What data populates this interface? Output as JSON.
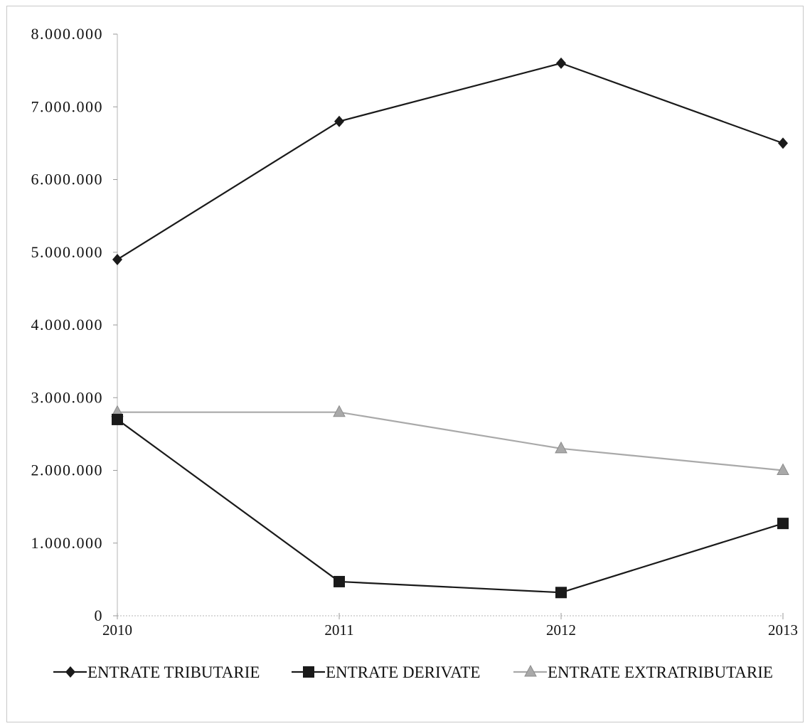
{
  "chart_data": {
    "type": "line",
    "categories": [
      "2010",
      "2011",
      "2012",
      "2013"
    ],
    "series": [
      {
        "name": "ENTRATE TRIBUTARIE",
        "marker": "diamond",
        "color": "#1a1a1a",
        "values": [
          4900000,
          6800000,
          7600000,
          6500000
        ]
      },
      {
        "name": "ENTRATE DERIVATE",
        "marker": "square",
        "color": "#1a1a1a",
        "values": [
          2700000,
          470000,
          320000,
          1270000
        ]
      },
      {
        "name": "ENTRATE EXTRATRIBUTARIE",
        "marker": "triangle",
        "color": "#a9a9a9",
        "values": [
          2800000,
          2800000,
          2300000,
          2000000
        ]
      }
    ],
    "ylim": [
      0,
      8000000
    ],
    "ytick_values": [
      0,
      1000000,
      2000000,
      3000000,
      4000000,
      5000000,
      6000000,
      7000000,
      8000000
    ],
    "ytick_labels": [
      "0",
      "1.000.000",
      "2.000.000",
      "3.000.000",
      "4.000.000",
      "5.000.000",
      "6.000.000",
      "7.000.000",
      "8.000.000"
    ],
    "grid": false,
    "legend_position": "bottom"
  }
}
